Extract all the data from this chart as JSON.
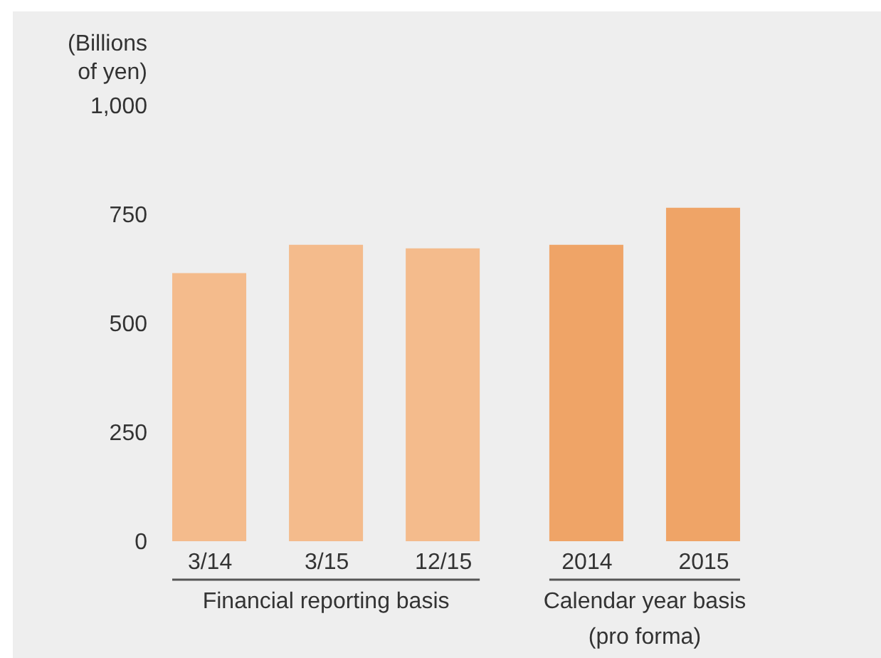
{
  "chart_data": {
    "type": "bar",
    "ylabel": "(Billions of yen)",
    "categories": [
      "3/14",
      "3/15",
      "12/15",
      "2014",
      "2015"
    ],
    "series": [
      {
        "name": "Financial reporting basis",
        "color": "#f4bb8c",
        "values": [
          615,
          680,
          672,
          null,
          null
        ]
      },
      {
        "name": "Calendar year basis (pro forma)",
        "color": "#efa467",
        "values": [
          null,
          null,
          null,
          680,
          765
        ]
      }
    ],
    "ylim": [
      0,
      1000
    ],
    "yticks": [
      0,
      250,
      500,
      750,
      {
        "value": 1000,
        "label": "1,000"
      }
    ],
    "grid": false
  }
}
